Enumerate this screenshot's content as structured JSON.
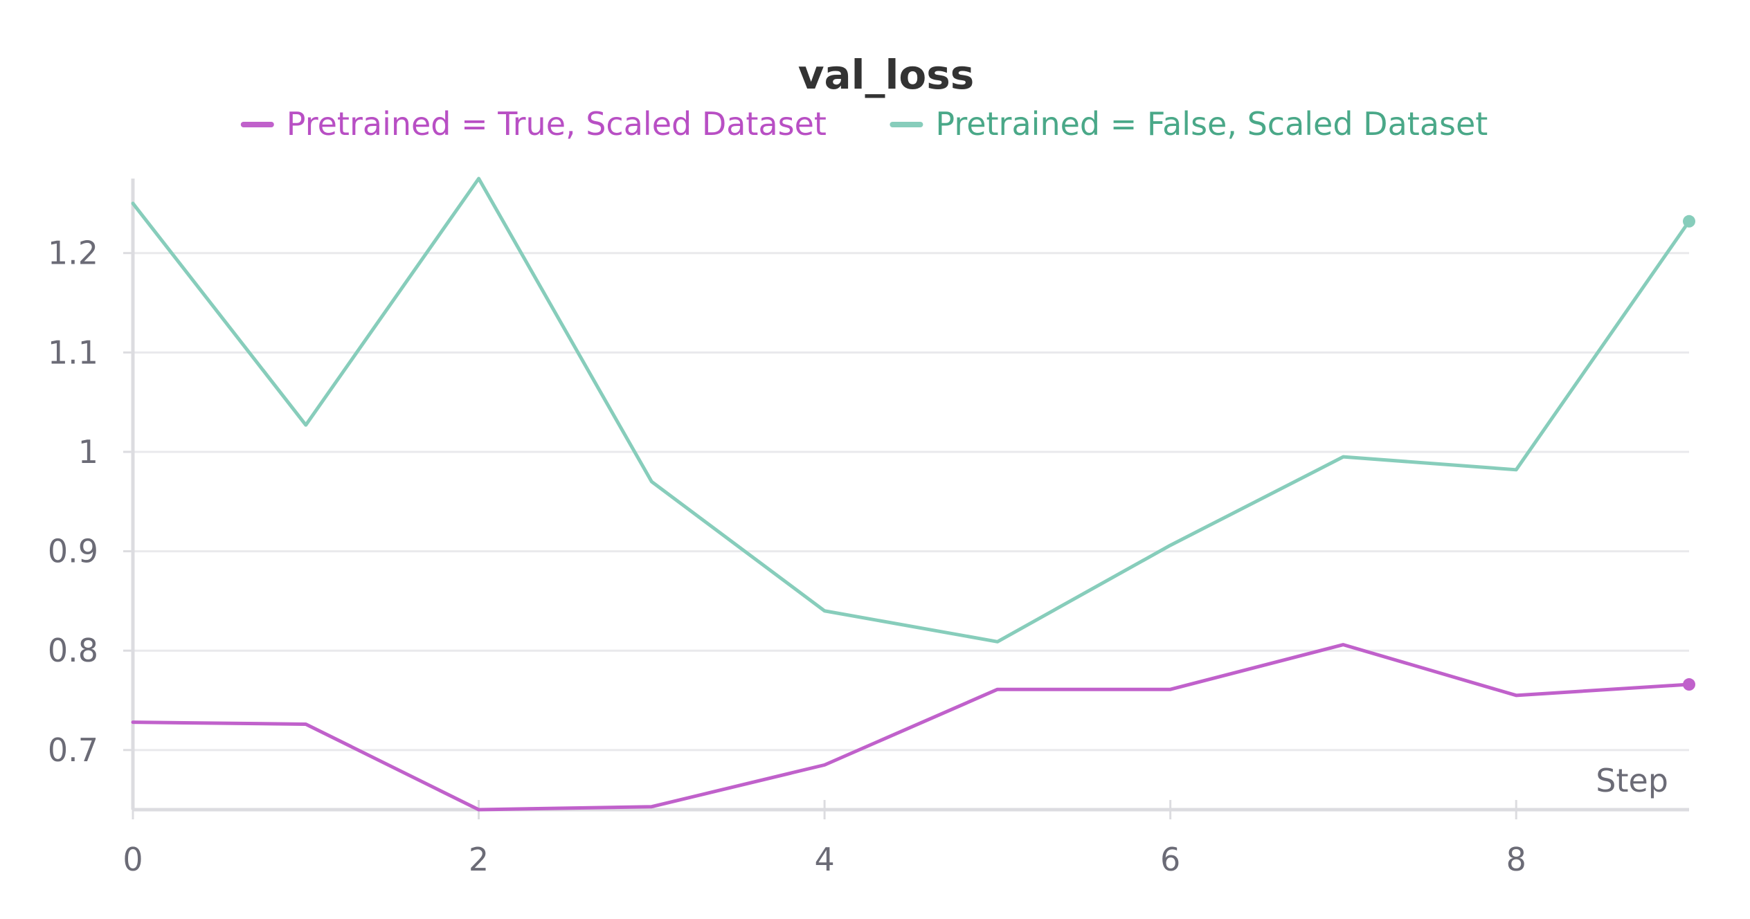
{
  "chart_data": {
    "type": "line",
    "title": "val_loss",
    "xlabel": "Step",
    "ylabel": "",
    "xlim": [
      0,
      9
    ],
    "ylim": [
      0.64,
      1.275
    ],
    "x_ticks": [
      0,
      2,
      4,
      6,
      8
    ],
    "y_ticks": [
      0.7,
      0.8,
      0.9,
      1,
      1.1,
      1.2
    ],
    "y_tick_labels": [
      "0.7",
      "0.8",
      "0.9",
      "1",
      "1.1",
      "1.2"
    ],
    "grid": true,
    "legend_position": "top-center",
    "x": [
      0,
      1,
      2,
      3,
      4,
      5,
      6,
      7,
      8,
      9
    ],
    "series": [
      {
        "name": "Pretrained = True, Scaled Dataset",
        "color": "#c061cb",
        "values": [
          0.728,
          0.726,
          0.64,
          0.643,
          0.685,
          0.761,
          0.761,
          0.806,
          0.755,
          0.766
        ]
      },
      {
        "name": "Pretrained = False, Scaled Dataset",
        "color": "#87cdbb",
        "values": [
          1.25,
          1.027,
          1.275,
          0.97,
          0.84,
          0.809,
          0.906,
          0.995,
          0.982,
          1.232
        ]
      }
    ],
    "legend_text_colors": [
      "#b84fc4",
      "#4aa888"
    ]
  }
}
